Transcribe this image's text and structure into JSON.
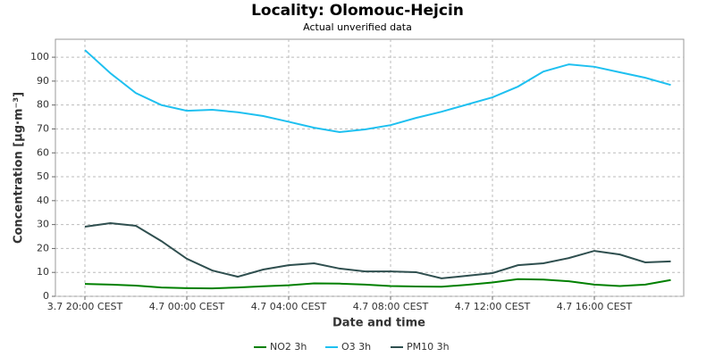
{
  "chart_data": {
    "type": "line",
    "title": "Locality: Olomouc-Hejcin",
    "subtitle": "Actual unverified data",
    "x_label": "Date and time",
    "y_label": "Concentration [µg·m⁻³]",
    "categories": [
      "3.7 20:00 CEST",
      null,
      null,
      null,
      "4.7 00:00 CEST",
      null,
      null,
      null,
      "4.7 04:00 CEST",
      null,
      null,
      null,
      "4.7 08:00 CEST",
      null,
      null,
      null,
      "4.7 12:00 CEST",
      null,
      null,
      null,
      "4.7 16:00 CEST",
      null,
      null,
      null
    ],
    "series": [
      {
        "name": "NO2 3h",
        "color": "#008000",
        "values": [
          5.2,
          4.9,
          4.5,
          3.7,
          3.4,
          3.3,
          3.7,
          4.2,
          4.6,
          5.4,
          5.3,
          4.9,
          4.3,
          4.1,
          4.0,
          4.8,
          5.8,
          7.2,
          7.0,
          6.3,
          4.9,
          4.3,
          4.9,
          6.8
        ]
      },
      {
        "name": "O3 3h",
        "color": "#1ec0f0",
        "values": [
          103,
          93.3,
          85,
          80,
          77.6,
          78,
          77,
          75.4,
          73,
          70.5,
          68.7,
          69.8,
          71.6,
          74.6,
          77.2,
          80.2,
          83.2,
          87.7,
          94,
          97,
          96,
          93.7,
          91.4,
          88.4
        ]
      },
      {
        "name": "PM10 3h",
        "color": "#2f4f4f",
        "values": [
          29.1,
          30.6,
          29.5,
          23.1,
          15.7,
          10.8,
          8.2,
          11.2,
          13,
          13.8,
          11.6,
          10.4,
          10.4,
          10.1,
          7.5,
          8.6,
          9.7,
          13,
          13.8,
          16,
          19,
          17.5,
          14.2,
          14.6
        ]
      }
    ],
    "ylim": [
      0,
      107.5
    ],
    "yticks": [
      0,
      10,
      20,
      30,
      40,
      50,
      60,
      70,
      80,
      90,
      100
    ],
    "grid": true,
    "legend": "bottom"
  }
}
